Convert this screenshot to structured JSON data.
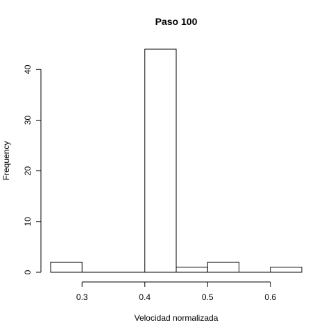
{
  "chart_data": {
    "type": "histogram",
    "title": "Paso 100",
    "xlabel": "Velocidad normalizada",
    "ylabel": "Frequency",
    "bins": [
      {
        "start": 0.25,
        "end": 0.3,
        "count": 2
      },
      {
        "start": 0.3,
        "end": 0.35,
        "count": 0
      },
      {
        "start": 0.35,
        "end": 0.4,
        "count": 0
      },
      {
        "start": 0.4,
        "end": 0.45,
        "count": 44
      },
      {
        "start": 0.45,
        "end": 0.5,
        "count": 1
      },
      {
        "start": 0.5,
        "end": 0.55,
        "count": 2
      },
      {
        "start": 0.55,
        "end": 0.6,
        "count": 0
      },
      {
        "start": 0.6,
        "end": 0.65,
        "count": 1
      }
    ],
    "xticks": [
      0.3,
      0.4,
      0.5,
      0.6
    ],
    "xtick_labels": [
      "0.3",
      "0.4",
      "0.5",
      "0.6"
    ],
    "yticks": [
      0,
      10,
      20,
      30,
      40
    ],
    "ytick_labels": [
      "0",
      "10",
      "20",
      "30",
      "40"
    ],
    "xlim": [
      0.25,
      0.65
    ],
    "ylim": [
      0,
      44
    ],
    "grid": false,
    "bar_fill": "#ffffff",
    "bar_stroke": "#000000"
  }
}
